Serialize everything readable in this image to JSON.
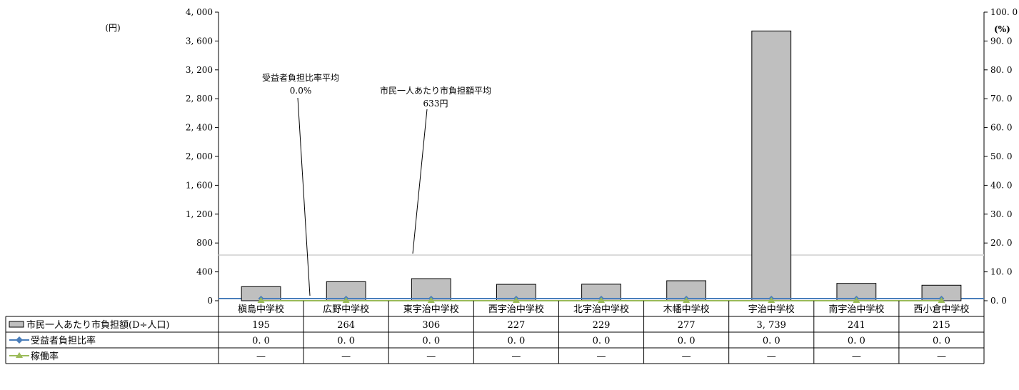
{
  "chart_data": {
    "type": "bar",
    "categories": [
      "槇島中学校",
      "広野中学校",
      "東宇治中学校",
      "西宇治中学校",
      "北宇治中学校",
      "木幡中学校",
      "宇治中学校",
      "南宇治中学校",
      "西小倉中学校"
    ],
    "series": [
      {
        "name": "市民一人あたり市負担額(D÷人口)",
        "axis": "left",
        "chart_kind": "bar",
        "color": "#bfbfbf",
        "values": [
          195,
          264,
          306,
          227,
          229,
          277,
          3739,
          241,
          215
        ],
        "labels": [
          "195",
          "264",
          "306",
          "227",
          "229",
          "277",
          "3, 739",
          "241",
          "215"
        ]
      },
      {
        "name": "受益者負担比率",
        "axis": "right",
        "chart_kind": "line",
        "marker": "diamond",
        "color": "#4a7ebb",
        "values": [
          0.0,
          0.0,
          0.0,
          0.0,
          0.0,
          0.0,
          0.0,
          0.0,
          0.0
        ],
        "labels": [
          "0. 0",
          "0. 0",
          "0. 0",
          "0. 0",
          "0. 0",
          "0. 0",
          "0. 0",
          "0. 0",
          "0. 0"
        ]
      },
      {
        "name": "稼働率",
        "axis": "right",
        "chart_kind": "line",
        "marker": "triangle",
        "color": "#9bbb59",
        "values": [
          0,
          0,
          0,
          0,
          0,
          0,
          0,
          0,
          0
        ],
        "labels": [
          "—",
          "—",
          "—",
          "—",
          "—",
          "—",
          "—",
          "—",
          "—"
        ]
      }
    ],
    "left_axis": {
      "unit_label": "(円)",
      "ylim": [
        0,
        4000
      ],
      "ticks": [
        0,
        400,
        800,
        1200,
        1600,
        2000,
        2400,
        2800,
        3200,
        3600,
        4000
      ],
      "tick_labels": [
        "0",
        "400",
        "800",
        "1, 200",
        "1, 600",
        "2, 000",
        "2, 400",
        "2, 800",
        "3, 200",
        "3, 600",
        "4, 000"
      ]
    },
    "right_axis": {
      "unit_label": "(%)",
      "ylim": [
        0,
        100
      ],
      "ticks": [
        0,
        10,
        20,
        30,
        40,
        50,
        60,
        70,
        80,
        90,
        100
      ],
      "tick_labels": [
        "0. 0",
        "10. 0",
        "20. 0",
        "30. 0",
        "40. 0",
        "50. 0",
        "60. 0",
        "70. 0",
        "80. 0",
        "90. 0",
        "100. 0"
      ]
    },
    "reference_lines": [
      {
        "axis": "left",
        "value": 633,
        "color": "#d9d9d9",
        "label_title": "市民一人あたり市負担額平均",
        "label_value": "633円"
      },
      {
        "axis": "right",
        "value": 0.0,
        "color": "#4a7ebb",
        "label_title": "受益者負担比率平均",
        "label_value": "0.0%"
      }
    ],
    "grid": false,
    "legend": "data-table-below"
  }
}
